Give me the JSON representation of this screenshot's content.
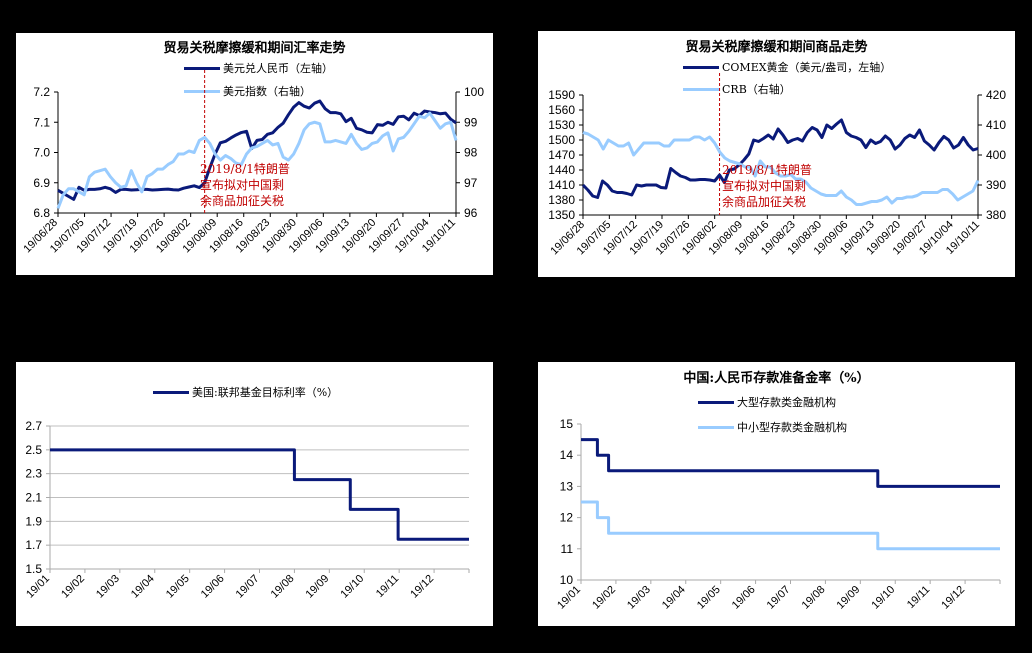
{
  "colors": {
    "dark_series": "#0a1a7a",
    "light_series": "#99ccff",
    "annotation": "#c00000",
    "grid": "#bfbfbf"
  },
  "chart_data": [
    {
      "id": "fx",
      "type": "line",
      "title": "贸易关税摩擦缓和期间汇率走势",
      "x_tick_labels": [
        "19/06/28",
        "19/07/05",
        "19/07/12",
        "19/07/19",
        "19/07/26",
        "19/08/02",
        "19/08/09",
        "19/08/16",
        "19/08/23",
        "19/08/30",
        "19/09/06",
        "19/09/13",
        "19/09/20",
        "19/09/27",
        "19/10/04",
        "19/10/11"
      ],
      "y_left": {
        "min": 6.8,
        "max": 7.2,
        "ticks": [
          "6.8",
          "6.9",
          "7.0",
          "7.1",
          "7.2"
        ]
      },
      "y_right": {
        "min": 96,
        "max": 100,
        "ticks": [
          "96",
          "97",
          "98",
          "99",
          "100"
        ]
      },
      "series": [
        {
          "name": "美元兑人民币（左轴）",
          "axis": "left",
          "color": "#0a1a7a",
          "values": [
            6.875,
            6.865,
            6.855,
            6.845,
            6.885,
            6.875,
            6.878,
            6.878,
            6.88,
            6.885,
            6.88,
            6.868,
            6.878,
            6.878,
            6.876,
            6.877,
            6.878,
            6.878,
            6.876,
            6.877,
            6.878,
            6.879,
            6.877,
            6.876,
            6.882,
            6.886,
            6.89,
            6.884,
            6.9,
            6.95,
            6.995,
            7.032,
            7.037,
            7.048,
            7.058,
            7.066,
            7.07,
            7.013,
            7.04,
            7.043,
            7.06,
            7.065,
            7.083,
            7.097,
            7.125,
            7.15,
            7.165,
            7.153,
            7.147,
            7.163,
            7.17,
            7.145,
            7.132,
            7.132,
            7.128,
            7.102,
            7.113,
            7.08,
            7.075,
            7.067,
            7.065,
            7.092,
            7.09,
            7.1,
            7.093,
            7.118,
            7.12,
            7.108,
            7.13,
            7.122,
            7.137,
            7.134,
            7.132,
            7.128,
            7.13,
            7.11,
            7.098
          ]
        },
        {
          "name": "美元指数（右轴）",
          "axis": "right",
          "color": "#99ccff",
          "values": [
            96.15,
            96.6,
            96.8,
            96.8,
            96.7,
            96.6,
            97.2,
            97.35,
            97.4,
            97.45,
            97.2,
            97.0,
            96.85,
            96.9,
            97.4,
            97.0,
            96.7,
            97.2,
            97.3,
            97.45,
            97.45,
            97.6,
            97.7,
            97.95,
            97.95,
            98.05,
            98.0,
            98.4,
            98.5,
            98.3,
            97.95,
            97.75,
            97.9,
            97.8,
            97.65,
            97.6,
            97.95,
            98.15,
            98.2,
            98.3,
            98.4,
            98.25,
            98.3,
            97.85,
            97.75,
            97.95,
            98.3,
            98.75,
            98.95,
            99.0,
            98.95,
            98.35,
            98.35,
            98.4,
            98.35,
            98.3,
            98.6,
            98.3,
            98.1,
            98.15,
            98.3,
            98.35,
            98.55,
            98.65,
            98.05,
            98.45,
            98.5,
            98.7,
            98.95,
            99.2,
            99.15,
            99.3,
            99.05,
            98.8,
            98.95,
            99.0,
            98.4
          ]
        }
      ],
      "annotation": {
        "lines": [
          "2019/8/1特朗普",
          "宣布拟对中国剩",
          "余商品加征关税"
        ],
        "x_index": 28
      }
    },
    {
      "id": "commodity",
      "type": "line",
      "title": "贸易关税摩擦缓和期间商品走势",
      "x_tick_labels": [
        "19/06/28",
        "19/07/05",
        "19/07/12",
        "19/07/19",
        "19/07/26",
        "19/08/02",
        "19/08/09",
        "19/08/16",
        "19/08/23",
        "19/08/30",
        "19/09/06",
        "19/09/13",
        "19/09/20",
        "19/09/27",
        "19/10/04",
        "19/10/11"
      ],
      "y_left": {
        "min": 1350,
        "max": 1590,
        "ticks": [
          "1350",
          "1380",
          "1410",
          "1440",
          "1470",
          "1500",
          "1530",
          "1560",
          "1590"
        ]
      },
      "y_right": {
        "min": 380,
        "max": 420,
        "ticks": [
          "380",
          "390",
          "400",
          "410",
          "420"
        ]
      },
      "series": [
        {
          "name": "COMEX黄金（美元/盎司，左轴）",
          "axis": "left",
          "color": "#0a1a7a",
          "values": [
            1410,
            1400,
            1388,
            1385,
            1418,
            1410,
            1398,
            1395,
            1395,
            1393,
            1390,
            1410,
            1408,
            1410,
            1410,
            1410,
            1405,
            1404,
            1443,
            1435,
            1428,
            1425,
            1420,
            1420,
            1421,
            1421,
            1420,
            1418,
            1430,
            1415,
            1440,
            1442,
            1450,
            1460,
            1472,
            1500,
            1497,
            1503,
            1510,
            1502,
            1522,
            1510,
            1495,
            1500,
            1503,
            1498,
            1515,
            1525,
            1520,
            1505,
            1530,
            1523,
            1532,
            1540,
            1515,
            1508,
            1505,
            1500,
            1485,
            1500,
            1493,
            1497,
            1508,
            1500,
            1482,
            1490,
            1503,
            1510,
            1505,
            1520,
            1498,
            1490,
            1480,
            1495,
            1507,
            1500,
            1484,
            1490,
            1505,
            1490,
            1480,
            1483
          ]
        },
        {
          "name": "CRB（右轴）",
          "axis": "right",
          "color": "#99ccff",
          "values": [
            407.5,
            407,
            406,
            405,
            402,
            405,
            404,
            403,
            403,
            404,
            400,
            402,
            404,
            404,
            404,
            404,
            403,
            403,
            405,
            405,
            405,
            405,
            406,
            406,
            405,
            406,
            404,
            401,
            399,
            398,
            397.5,
            397,
            396,
            396,
            393,
            398,
            396,
            396,
            394,
            393,
            393,
            393.5,
            392,
            392,
            391,
            389,
            388,
            387,
            386.5,
            386.5,
            386.5,
            388,
            386,
            385,
            383.5,
            383.5,
            384,
            384.5,
            384.5,
            385,
            386,
            384,
            385.5,
            385.5,
            386,
            386,
            386.5,
            387.5,
            387.5,
            387.5,
            387.5,
            388.5,
            388.5,
            387,
            385,
            386,
            387,
            388,
            391.5
          ]
        }
      ],
      "annotation": {
        "lines": [
          "2019/8/1特朗普",
          "宣布拟对中国剩",
          "余商品加征关税"
        ],
        "x_index": 28
      }
    },
    {
      "id": "fed",
      "type": "line",
      "title": "",
      "x_tick_labels": [
        "19/01",
        "19/02",
        "19/03",
        "19/04",
        "19/05",
        "19/06",
        "19/07",
        "19/08",
        "19/09",
        "19/10",
        "19/11",
        "19/12"
      ],
      "y_left": {
        "min": 1.5,
        "max": 2.7,
        "ticks": [
          "1.5",
          "1.7",
          "1.9",
          "2.1",
          "2.3",
          "2.5",
          "2.7"
        ]
      },
      "grid": true,
      "series": [
        {
          "name": "美国:联邦基金目标利率（%）",
          "color": "#0a1a7a",
          "step": true,
          "points": [
            [
              0,
              2.5
            ],
            [
              7.0,
              2.5
            ],
            [
              7.0,
              2.25
            ],
            [
              8.6,
              2.25
            ],
            [
              8.6,
              2.0
            ],
            [
              9.97,
              2.0
            ],
            [
              9.97,
              1.75
            ],
            [
              12,
              1.75
            ]
          ]
        }
      ]
    },
    {
      "id": "rrr",
      "type": "line",
      "title": "中国:人民币存款准备金率（%）",
      "x_tick_labels": [
        "19/01",
        "19/02",
        "19/03",
        "19/04",
        "19/05",
        "19/06",
        "19/07",
        "19/08",
        "19/09",
        "19/10",
        "19/11",
        "19/12"
      ],
      "y_left": {
        "min": 10,
        "max": 15,
        "ticks": [
          "10",
          "11",
          "12",
          "13",
          "14",
          "15"
        ]
      },
      "series": [
        {
          "name": "大型存款类金融机构",
          "color": "#0a1a7a",
          "step": true,
          "points": [
            [
              0,
              14.5
            ],
            [
              0.47,
              14.5
            ],
            [
              0.47,
              14.0
            ],
            [
              0.79,
              14.0
            ],
            [
              0.79,
              13.5
            ],
            [
              8.5,
              13.5
            ],
            [
              8.5,
              13.0
            ],
            [
              12,
              13.0
            ]
          ]
        },
        {
          "name": "中小型存款类金融机构",
          "color": "#99ccff",
          "step": true,
          "points": [
            [
              0,
              12.5
            ],
            [
              0.47,
              12.5
            ],
            [
              0.47,
              12.0
            ],
            [
              0.79,
              12.0
            ],
            [
              0.79,
              11.5
            ],
            [
              8.5,
              11.5
            ],
            [
              8.5,
              11.0
            ],
            [
              12,
              11.0
            ]
          ]
        }
      ]
    }
  ]
}
